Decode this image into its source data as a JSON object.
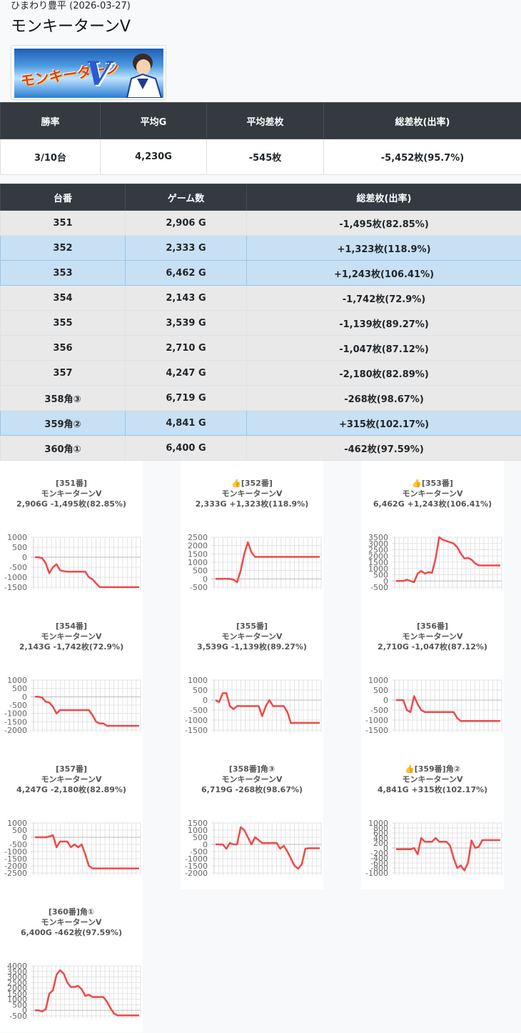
{
  "header": {
    "breadcrumb": "ひまわり豊平 (2026-03-27)",
    "title": "モンキーターンV",
    "banner_logo_text": "モンキーターン",
    "banner_logo_v": "V"
  },
  "summary": {
    "headers": [
      "勝率",
      "平均G",
      "平均差枚",
      "総差枚(出率)"
    ],
    "values": [
      "3/10台",
      "4,230G",
      "-545枚",
      "-5,452枚(95.7%)"
    ]
  },
  "units_table": {
    "headers": [
      "台番",
      "ゲーム数",
      "総差枚(出率)"
    ],
    "rows": [
      {
        "no": "351",
        "games": "2,906 G",
        "diff": "-1,495枚(82.85%)",
        "positive": false
      },
      {
        "no": "352",
        "games": "2,333 G",
        "diff": "+1,323枚(118.9%)",
        "positive": true
      },
      {
        "no": "353",
        "games": "6,462 G",
        "diff": "+1,243枚(106.41%)",
        "positive": true
      },
      {
        "no": "354",
        "games": "2,143 G",
        "diff": "-1,742枚(72.9%)",
        "positive": false
      },
      {
        "no": "355",
        "games": "3,539 G",
        "diff": "-1,139枚(89.27%)",
        "positive": false
      },
      {
        "no": "356",
        "games": "2,710 G",
        "diff": "-1,047枚(87.12%)",
        "positive": false
      },
      {
        "no": "357",
        "games": "4,247 G",
        "diff": "-2,180枚(82.89%)",
        "positive": false
      },
      {
        "no": "358角③",
        "games": "6,719 G",
        "diff": "-268枚(98.67%)",
        "positive": false
      },
      {
        "no": "359角②",
        "games": "4,841 G",
        "diff": "+315枚(102.17%)",
        "positive": true
      },
      {
        "no": "360角①",
        "games": "6,400 G",
        "diff": "-462枚(97.59%)",
        "positive": false
      }
    ]
  },
  "colors": {
    "header_bg": "#343a40",
    "positive_row": "#c7e0f4",
    "negative_row": "#e9e9e9",
    "line": "#f04848"
  },
  "chart_data": [
    {
      "type": "line",
      "title": [
        "[351番]",
        "モンキーターンV",
        "2,906G -1,495枚(82.85%)"
      ],
      "ylim": [
        -1500,
        1000
      ],
      "yticks": [
        1000,
        500,
        0,
        -500,
        -1000,
        -1500
      ],
      "values": [
        0,
        0,
        -50,
        -300,
        -800,
        -500,
        -350,
        -650,
        -700,
        -720,
        -720,
        -720,
        -720,
        -720,
        -720,
        -1000,
        -1100,
        -1300,
        -1495,
        -1495,
        -1495,
        -1495,
        -1495,
        -1495,
        -1495,
        -1495,
        -1495,
        -1495,
        -1495,
        -1495
      ]
    },
    {
      "type": "line",
      "title": [
        "👍[352番]",
        "モンキーターンV",
        "2,333G +1,323枚(118.9%)"
      ],
      "ylim": [
        -500,
        2500
      ],
      "yticks": [
        2500,
        2000,
        1500,
        1000,
        500,
        0,
        -500
      ],
      "values": [
        0,
        0,
        0,
        0,
        0,
        -50,
        -200,
        500,
        1500,
        2200,
        1600,
        1323,
        1323,
        1323,
        1323,
        1323,
        1323,
        1323,
        1323,
        1323,
        1323,
        1323,
        1323,
        1323,
        1323,
        1323,
        1323,
        1323,
        1323,
        1323
      ]
    },
    {
      "type": "line",
      "title": [
        "👍[353番]",
        "モンキーターンV",
        "6,462G +1,243枚(106.41%)"
      ],
      "ylim": [
        -500,
        3500
      ],
      "yticks": [
        3500,
        3000,
        2500,
        2000,
        1500,
        1000,
        500,
        0,
        -500
      ],
      "values": [
        0,
        0,
        0,
        100,
        0,
        -100,
        600,
        800,
        600,
        700,
        650,
        1800,
        3500,
        3300,
        3200,
        3100,
        3000,
        2700,
        2200,
        1800,
        1850,
        1700,
        1400,
        1250,
        1243,
        1243,
        1243,
        1243,
        1243,
        1243
      ]
    },
    {
      "type": "line",
      "title": [
        "[354番]",
        "モンキーターンV",
        "2,143G -1,742枚(72.9%)"
      ],
      "ylim": [
        -2000,
        1000
      ],
      "yticks": [
        1000,
        500,
        0,
        -500,
        -1000,
        -1500,
        -2000
      ],
      "values": [
        0,
        0,
        -50,
        -300,
        -350,
        -600,
        -1000,
        -800,
        -800,
        -800,
        -800,
        -800,
        -800,
        -800,
        -800,
        -800,
        -1100,
        -1500,
        -1600,
        -1600,
        -1742,
        -1742,
        -1742,
        -1742,
        -1742,
        -1742,
        -1742,
        -1742,
        -1742,
        -1742
      ]
    },
    {
      "type": "line",
      "title": [
        "[355番]",
        "モンキーターンV",
        "3,539G -1,139枚(89.27%)"
      ],
      "ylim": [
        -1500,
        1000
      ],
      "yticks": [
        1000,
        500,
        0,
        -500,
        -1000,
        -1500
      ],
      "values": [
        0,
        -100,
        350,
        350,
        -300,
        -450,
        -300,
        -300,
        -300,
        -300,
        -300,
        -300,
        -300,
        -800,
        -300,
        0,
        -300,
        -300,
        -300,
        -300,
        -600,
        -1150,
        -1139,
        -1139,
        -1139,
        -1139,
        -1139,
        -1139,
        -1139,
        -1139
      ]
    },
    {
      "type": "line",
      "title": [
        "[356番]",
        "モンキーターンV",
        "2,710G -1,047枚(87.12%)"
      ],
      "ylim": [
        -1500,
        1000
      ],
      "yticks": [
        1000,
        500,
        0,
        -500,
        -1000,
        -1500
      ],
      "values": [
        0,
        0,
        0,
        -500,
        -600,
        200,
        -200,
        -500,
        -600,
        -600,
        -600,
        -600,
        -600,
        -600,
        -600,
        -600,
        -600,
        -900,
        -1047,
        -1047,
        -1047,
        -1047,
        -1047,
        -1047,
        -1047,
        -1047,
        -1047,
        -1047,
        -1047,
        -1047
      ]
    },
    {
      "type": "line",
      "title": [
        "[357番]",
        "モンキーターンV",
        "4,247G -2,180枚(82.89%)"
      ],
      "ylim": [
        -2500,
        1000
      ],
      "yticks": [
        1000,
        500,
        0,
        -500,
        -1000,
        -1500,
        -2000,
        -2500
      ],
      "values": [
        0,
        0,
        0,
        0,
        50,
        150,
        -700,
        -300,
        -300,
        -300,
        -700,
        -500,
        -700,
        -500,
        -1200,
        -2000,
        -2180,
        -2180,
        -2180,
        -2180,
        -2180,
        -2180,
        -2180,
        -2180,
        -2180,
        -2180,
        -2180,
        -2180,
        -2180,
        -2180
      ]
    },
    {
      "type": "line",
      "title": [
        "[358番]角③",
        "モンキーターンV",
        "6,719G -268枚(98.67%)"
      ],
      "ylim": [
        -2000,
        1500
      ],
      "yticks": [
        1500,
        1000,
        500,
        0,
        -500,
        -1000,
        -1500,
        -2000
      ],
      "values": [
        0,
        0,
        0,
        -300,
        100,
        0,
        0,
        1200,
        1000,
        500,
        0,
        500,
        300,
        100,
        100,
        100,
        100,
        100,
        -300,
        -100,
        -500,
        -1000,
        -1500,
        -1700,
        -1400,
        -300,
        -268,
        -268,
        -268,
        -268
      ]
    },
    {
      "type": "line",
      "title": [
        "👍[359番]角②",
        "モンキーターンV",
        "4,841G +315枚(102.17%)"
      ],
      "ylim": [
        -1000,
        1000
      ],
      "yticks": [
        1000,
        800,
        600,
        400,
        200,
        0,
        -200,
        -400,
        -600,
        -800,
        -1000
      ],
      "values": [
        -50,
        -50,
        -50,
        -50,
        -50,
        0,
        -250,
        400,
        250,
        250,
        250,
        400,
        250,
        250,
        250,
        100,
        -400,
        -800,
        -700,
        -900,
        -600,
        300,
        0,
        50,
        315,
        315,
        315,
        315,
        315,
        315
      ]
    },
    {
      "type": "line",
      "title": [
        "[360番]角①",
        "モンキーターンV",
        "6,400G -462枚(97.59%)"
      ],
      "ylim": [
        -500,
        4000
      ],
      "yticks": [
        4000,
        3500,
        3000,
        2500,
        2000,
        1500,
        1000,
        500,
        0,
        -500
      ],
      "values": [
        0,
        0,
        -100,
        100,
        1500,
        1800,
        3200,
        3600,
        3300,
        2500,
        2100,
        2100,
        2200,
        1900,
        1300,
        1400,
        1200,
        1200,
        1200,
        1200,
        800,
        200,
        -300,
        -462,
        -462,
        -462,
        -462,
        -462,
        -462,
        -462
      ]
    }
  ]
}
